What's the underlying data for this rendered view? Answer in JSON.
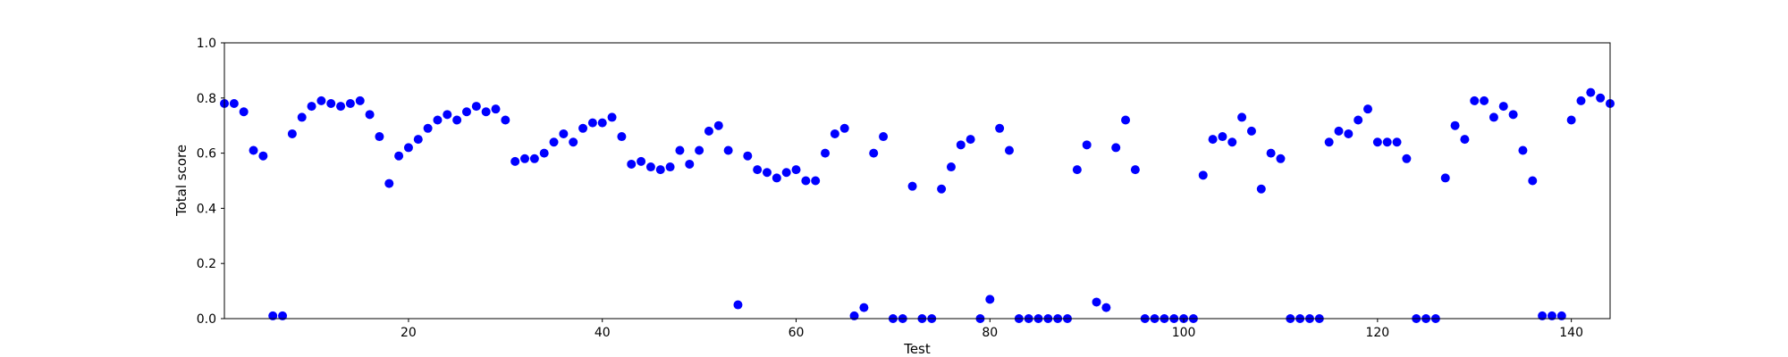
{
  "chart_data": {
    "type": "scatter",
    "xlabel": "Test",
    "ylabel": "Total score",
    "xlim": [
      1,
      144
    ],
    "ylim": [
      0.0,
      1.0
    ],
    "x_ticks": [
      20,
      40,
      60,
      80,
      100,
      120,
      140
    ],
    "y_ticks": [
      0.0,
      0.2,
      0.4,
      0.6,
      0.8,
      1.0
    ],
    "x_tick_labels": [
      "20",
      "40",
      "60",
      "80",
      "100",
      "120",
      "140"
    ],
    "y_tick_labels": [
      "0.0",
      "0.2",
      "0.4",
      "0.6",
      "0.8",
      "1.0"
    ],
    "grid": false,
    "series": [
      {
        "color": "#0000ff",
        "x": [
          1,
          2,
          3,
          4,
          5,
          6,
          7,
          8,
          9,
          10,
          11,
          12,
          13,
          14,
          15,
          16,
          17,
          18,
          19,
          20,
          21,
          22,
          23,
          24,
          25,
          26,
          27,
          28,
          29,
          30,
          31,
          32,
          33,
          34,
          35,
          36,
          37,
          38,
          39,
          40,
          41,
          42,
          43,
          44,
          45,
          46,
          47,
          48,
          49,
          50,
          51,
          52,
          53,
          54,
          55,
          56,
          57,
          58,
          59,
          60,
          61,
          62,
          63,
          64,
          65,
          66,
          67,
          68,
          69,
          70,
          71,
          72,
          73,
          74,
          75,
          76,
          77,
          78,
          79,
          80,
          81,
          82,
          83,
          84,
          85,
          86,
          87,
          88,
          89,
          90,
          91,
          92,
          93,
          94,
          95,
          96,
          97,
          98,
          99,
          100,
          101,
          102,
          103,
          104,
          105,
          106,
          107,
          108,
          109,
          110,
          111,
          112,
          113,
          114,
          115,
          116,
          117,
          118,
          119,
          120,
          121,
          122,
          123,
          124,
          125,
          126,
          127,
          128,
          129,
          130,
          131,
          132,
          133,
          134,
          135,
          136,
          137,
          138,
          139,
          140,
          141,
          142,
          143,
          144
        ],
        "y": [
          0.78,
          0.78,
          0.75,
          0.61,
          0.59,
          0.01,
          0.01,
          0.67,
          0.73,
          0.77,
          0.79,
          0.78,
          0.77,
          0.78,
          0.79,
          0.74,
          0.66,
          0.49,
          0.59,
          0.62,
          0.65,
          0.69,
          0.72,
          0.74,
          0.72,
          0.75,
          0.77,
          0.75,
          0.76,
          0.72,
          0.57,
          0.58,
          0.58,
          0.6,
          0.64,
          0.67,
          0.64,
          0.69,
          0.71,
          0.71,
          0.73,
          0.66,
          0.56,
          0.57,
          0.55,
          0.54,
          0.55,
          0.61,
          0.56,
          0.61,
          0.68,
          0.7,
          0.61,
          0.05,
          0.59,
          0.54,
          0.53,
          0.51,
          0.53,
          0.54,
          0.5,
          0.5,
          0.6,
          0.67,
          0.69,
          0.01,
          0.04,
          0.6,
          0.66,
          0.0,
          0.0,
          0.48,
          0.0,
          0.0,
          0.47,
          0.55,
          0.63,
          0.65,
          0.0,
          0.07,
          0.69,
          0.61,
          0.0,
          0.0,
          0.0,
          0.0,
          0.0,
          0.0,
          0.54,
          0.63,
          0.06,
          0.04,
          0.62,
          0.72,
          0.54,
          0.0,
          0.0,
          0.0,
          0.0,
          0.0,
          0.0,
          0.52,
          0.65,
          0.66,
          0.64,
          0.73,
          0.68,
          0.47,
          0.6,
          0.58,
          0.0,
          0.0,
          0.0,
          0.0,
          0.64,
          0.68,
          0.67,
          0.72,
          0.76,
          0.64,
          0.64,
          0.64,
          0.58,
          0.0,
          0.0,
          0.0,
          0.51,
          0.7,
          0.65,
          0.79,
          0.79,
          0.73,
          0.77,
          0.74,
          0.61,
          0.5,
          0.01,
          0.01,
          0.01,
          0.72,
          0.79,
          0.82,
          0.8,
          0.78
        ]
      }
    ]
  }
}
